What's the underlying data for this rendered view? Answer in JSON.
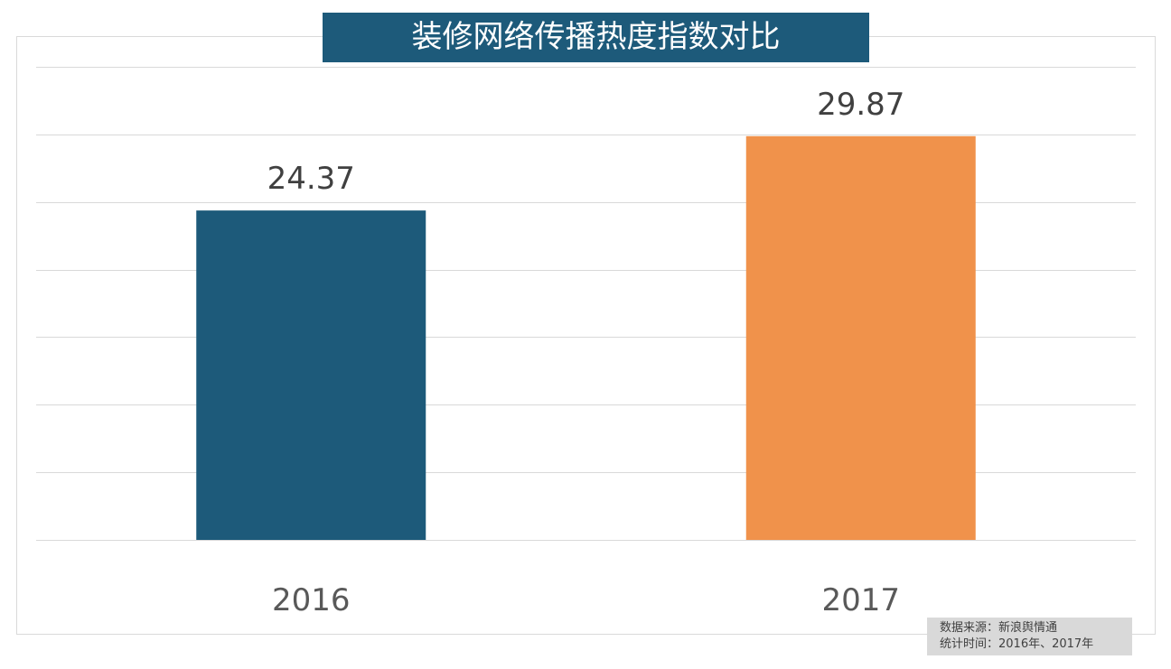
{
  "chart_data": {
    "type": "bar",
    "title": "装修网络传播热度指数对比",
    "categories": [
      "2016",
      "2017"
    ],
    "values": [
      24.37,
      29.87
    ],
    "colors": [
      "#1d5a7a",
      "#f0924b"
    ],
    "ylim": [
      0,
      35
    ],
    "ytick_step": 5,
    "grid": true,
    "yaxis_labels_shown": false,
    "legend": "none"
  },
  "source": {
    "line1": "数据来源：新浪舆情通",
    "line2": "统计时间：2016年、2017年"
  }
}
